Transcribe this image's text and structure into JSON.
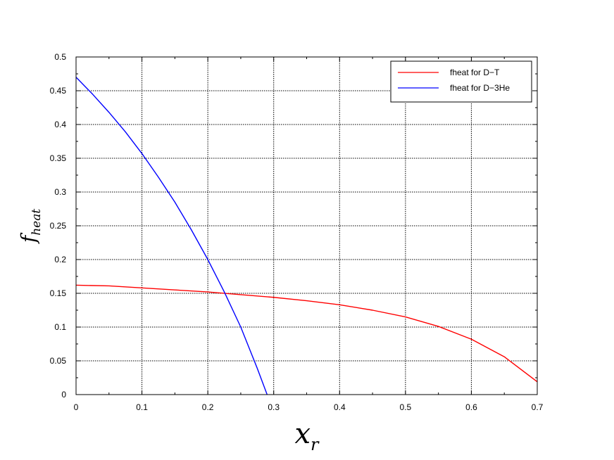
{
  "chart_data": {
    "type": "line",
    "title": "",
    "xlabel": {
      "main": "x",
      "sub": "r"
    },
    "ylabel": {
      "main": "f",
      "sub": "heat"
    },
    "xlim": [
      0,
      0.7
    ],
    "ylim": [
      0,
      0.5
    ],
    "x_ticks": [
      "0",
      "0.1",
      "0.2",
      "0.3",
      "0.4",
      "0.5",
      "0.6",
      "0.7"
    ],
    "y_ticks": [
      "0",
      "0.05",
      "0.1",
      "0.15",
      "0.2",
      "0.25",
      "0.3",
      "0.35",
      "0.4",
      "0.45",
      "0.5"
    ],
    "grid": true,
    "legend_position": "top-right",
    "series": [
      {
        "name": "fheat for D−T",
        "color": "#ff0000",
        "x": [
          0,
          0.05,
          0.1,
          0.15,
          0.2,
          0.25,
          0.3,
          0.35,
          0.4,
          0.45,
          0.5,
          0.55,
          0.6,
          0.65,
          0.7
        ],
        "y": [
          0.162,
          0.161,
          0.158,
          0.155,
          0.152,
          0.148,
          0.144,
          0.139,
          0.133,
          0.125,
          0.115,
          0.101,
          0.082,
          0.056,
          0.019
        ]
      },
      {
        "name": "fheat for D−3He",
        "color": "#0000ff",
        "x": [
          0,
          0.025,
          0.05,
          0.075,
          0.1,
          0.125,
          0.15,
          0.175,
          0.2,
          0.225,
          0.25,
          0.275,
          0.29
        ],
        "y": [
          0.47,
          0.445,
          0.418,
          0.389,
          0.357,
          0.322,
          0.285,
          0.244,
          0.2,
          0.152,
          0.1,
          0.039,
          0.0
        ]
      }
    ]
  }
}
